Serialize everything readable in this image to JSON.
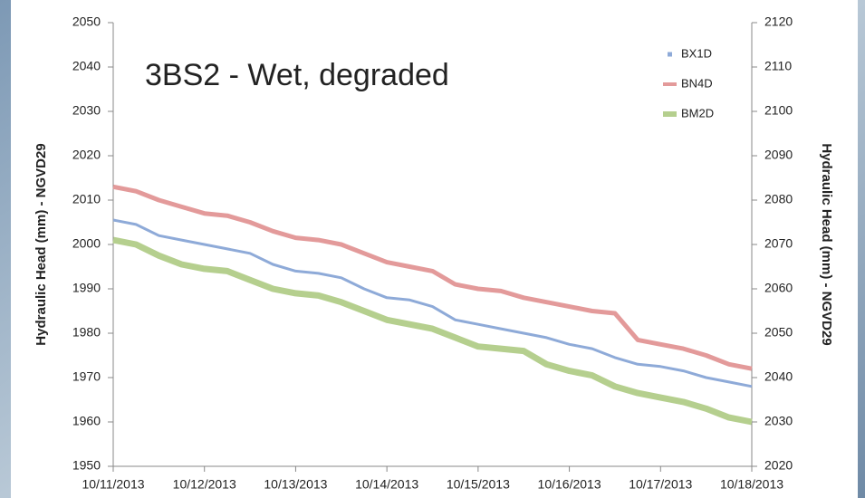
{
  "chart_data": {
    "type": "line",
    "annotation": "3BS2 - Wet, degraded",
    "ylabel": "Hydraulic Head (mm) - NGVD29",
    "y2label": "Hydraulic Head (mm) - NGVD29",
    "categories": [
      "10/11/2013",
      null,
      null,
      null,
      "10/12/2013",
      null,
      null,
      null,
      "10/13/2013",
      null,
      null,
      null,
      "10/14/2013",
      null,
      null,
      null,
      "10/15/2013",
      null,
      null,
      null,
      "10/16/2013",
      null,
      null,
      null,
      "10/17/2013",
      null,
      null,
      null,
      "10/18/2013"
    ],
    "series": [
      {
        "name": "BX1D",
        "color": "#8eaad8",
        "values": [
          2005.5,
          2004.5,
          2002,
          2001,
          2000,
          1999,
          1998,
          1995.5,
          1994,
          1993.5,
          1992.5,
          1990,
          1988,
          1987.5,
          1986,
          1983,
          1982,
          1981,
          1980,
          1979,
          1977.5,
          1976.5,
          1974.5,
          1973,
          1972.5,
          1971.5,
          1970,
          1969,
          1968
        ]
      },
      {
        "name": "BN4D",
        "color": "#e39a9a",
        "values": [
          2013,
          2012,
          2010,
          2008.5,
          2007,
          2006.5,
          2005,
          2003,
          2001.5,
          2001,
          2000,
          1998,
          1996,
          1995,
          1994,
          1991,
          1990,
          1989.5,
          1988,
          1987,
          1986,
          1985,
          1984.5,
          1978.5,
          1977.5,
          1976.5,
          1975,
          1973,
          1972
        ]
      },
      {
        "name": "BM2D",
        "color": "#b5cf8e",
        "values": [
          2001,
          2000,
          1997.5,
          1995.5,
          1994.5,
          1994,
          1992,
          1990,
          1989,
          1988.5,
          1987,
          1985,
          1983,
          1982,
          1981,
          1979,
          1977,
          1976.5,
          1976,
          1973,
          1971.5,
          1970.5,
          1968,
          1966.5,
          1965.5,
          1964.5,
          1963,
          1961,
          1960
        ]
      }
    ],
    "ylim": [
      1950,
      2050
    ],
    "yticks": [
      1950,
      1960,
      1970,
      1980,
      1990,
      2000,
      2010,
      2020,
      2030,
      2040,
      2050
    ],
    "y2lim": [
      2020,
      2120
    ],
    "y2ticks": [
      2020,
      2030,
      2040,
      2050,
      2060,
      2070,
      2080,
      2090,
      2100,
      2110,
      2120
    ]
  }
}
